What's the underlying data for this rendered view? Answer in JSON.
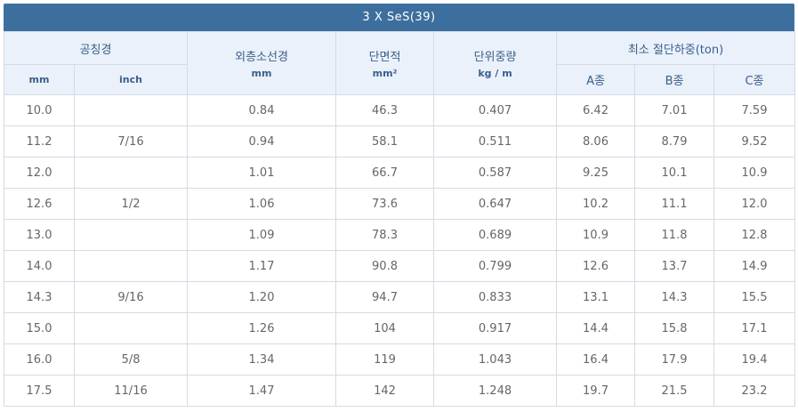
{
  "title": "3 X SeS(39)",
  "headers": {
    "nominal_diameter": "공칭경",
    "mm": "mm",
    "inch": "inch",
    "outer_strand_diameter": "외층소선경",
    "outer_strand_unit": "mm",
    "cross_section": "단면적",
    "cross_section_unit": "mm²",
    "unit_weight": "단위중량",
    "unit_weight_unit": "kg / m",
    "min_breaking_load": "최소 절단하중(ton)",
    "grade_a": "A종",
    "grade_b": "B종",
    "grade_c": "C종"
  },
  "rows": [
    [
      "10.0",
      "",
      "0.84",
      "46.3",
      "0.407",
      "6.42",
      "7.01",
      "7.59"
    ],
    [
      "11.2",
      "7/16",
      "0.94",
      "58.1",
      "0.511",
      "8.06",
      "8.79",
      "9.52"
    ],
    [
      "12.0",
      "",
      "1.01",
      "66.7",
      "0.587",
      "9.25",
      "10.1",
      "10.9"
    ],
    [
      "12.6",
      "1/2",
      "1.06",
      "73.6",
      "0.647",
      "10.2",
      "11.1",
      "12.0"
    ],
    [
      "13.0",
      "",
      "1.09",
      "78.3",
      "0.689",
      "10.9",
      "11.8",
      "12.8"
    ],
    [
      "14.0",
      "",
      "1.17",
      "90.8",
      "0.799",
      "12.6",
      "13.7",
      "14.9"
    ],
    [
      "14.3",
      "9/16",
      "1.20",
      "94.7",
      "0.833",
      "13.1",
      "14.3",
      "15.5"
    ],
    [
      "15.0",
      "",
      "1.26",
      "104",
      "0.917",
      "14.4",
      "15.8",
      "17.1"
    ],
    [
      "16.0",
      "5/8",
      "1.34",
      "119",
      "1.043",
      "16.4",
      "17.9",
      "19.4"
    ],
    [
      "17.5",
      "11/16",
      "1.47",
      "142",
      "1.248",
      "19.7",
      "21.5",
      "23.2"
    ]
  ]
}
